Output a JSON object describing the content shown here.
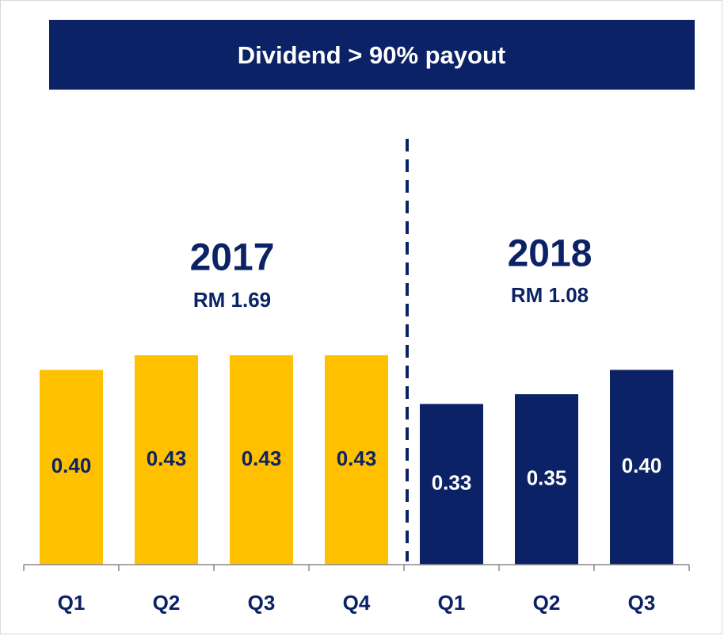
{
  "chart_data": {
    "type": "bar",
    "title": "Dividend > 90% payout",
    "title_color": "#0c2266",
    "axis_color": "#888888",
    "category_color": "#0c2266",
    "groups": [
      {
        "label": "2017",
        "total": "RM 1.69",
        "color": "#ffc000",
        "label_color": "#0c2266",
        "categories": [
          "Q1",
          "Q2",
          "Q3",
          "Q4"
        ],
        "values": [
          0.4,
          0.43,
          0.43,
          0.43
        ],
        "value_labels": [
          "0.40",
          "0.43",
          "0.43",
          "0.43"
        ]
      },
      {
        "label": "2018",
        "total": "RM 1.08",
        "color": "#0c2266",
        "label_color": "#ffffff",
        "categories": [
          "Q1",
          "Q2",
          "Q3"
        ],
        "values": [
          0.33,
          0.35,
          0.4
        ],
        "value_labels": [
          "0.33",
          "0.35",
          "0.40"
        ]
      }
    ]
  }
}
